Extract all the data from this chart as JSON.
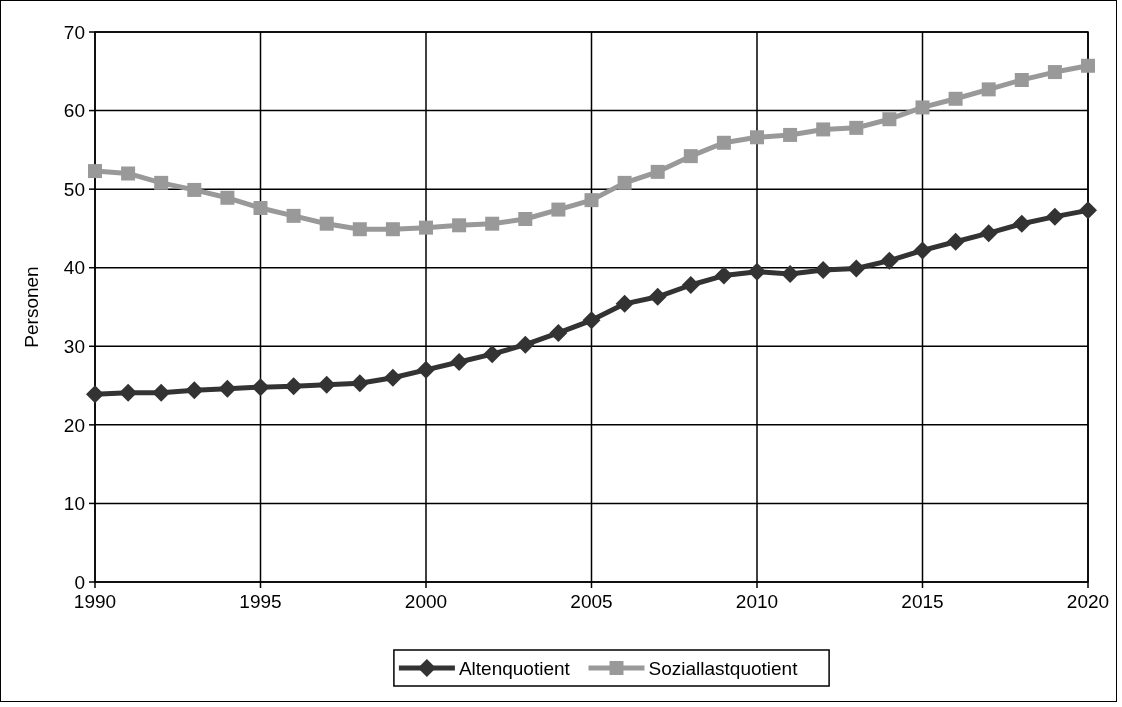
{
  "chart_data": {
    "type": "line",
    "ylabel": "Personen",
    "x": [
      1990,
      1991,
      1992,
      1993,
      1994,
      1995,
      1996,
      1997,
      1998,
      1999,
      2000,
      2001,
      2002,
      2003,
      2004,
      2005,
      2006,
      2007,
      2008,
      2009,
      2010,
      2011,
      2012,
      2013,
      2014,
      2015,
      2016,
      2017,
      2018,
      2019,
      2020
    ],
    "series": [
      {
        "name": "Altenquotient",
        "color": "#333333",
        "marker": "diamond",
        "values": [
          23.9,
          24.1,
          24.1,
          24.4,
          24.6,
          24.8,
          24.9,
          25.1,
          25.3,
          26.0,
          27.0,
          28.0,
          29.0,
          30.2,
          31.7,
          33.3,
          35.4,
          36.3,
          37.8,
          39.0,
          39.5,
          39.2,
          39.7,
          39.9,
          40.9,
          42.2,
          43.3,
          44.4,
          45.6,
          46.5,
          47.3
        ]
      },
      {
        "name": "Soziallastquotient",
        "color": "#999999",
        "marker": "square",
        "values": [
          52.3,
          52.0,
          50.8,
          49.9,
          48.9,
          47.6,
          46.6,
          45.6,
          44.9,
          44.9,
          45.1,
          45.4,
          45.6,
          46.2,
          47.4,
          48.6,
          50.8,
          52.2,
          54.2,
          55.9,
          56.6,
          56.9,
          57.6,
          57.8,
          58.9,
          60.4,
          61.5,
          62.7,
          63.9,
          64.9,
          65.7
        ]
      }
    ],
    "xlim": [
      1990,
      2020
    ],
    "xticks": [
      1990,
      1995,
      2000,
      2005,
      2010,
      2015,
      2020
    ],
    "ylim": [
      0,
      70
    ],
    "yticks": [
      0,
      10,
      20,
      30,
      40,
      50,
      60,
      70
    ],
    "grid": true,
    "legend": "bottom",
    "line_style": "solid"
  }
}
